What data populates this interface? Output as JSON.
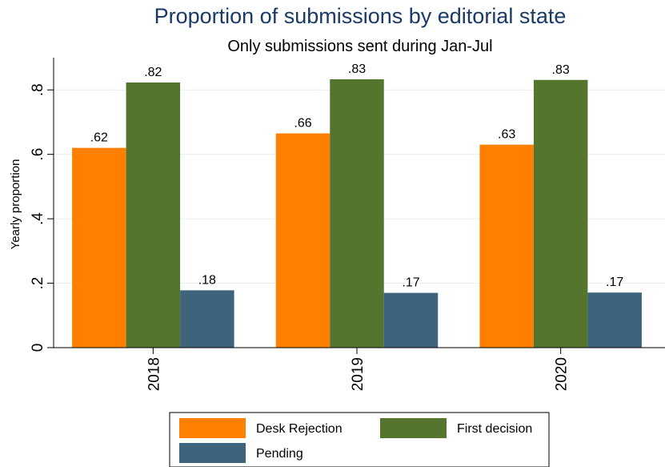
{
  "chart_data": {
    "type": "bar",
    "title": "Proportion of submissions by editorial state",
    "subtitle": "Only submissions sent during Jan-Jul",
    "ylabel": "Yearly proportion",
    "xlabel": "",
    "ylim": [
      0,
      0.9
    ],
    "yticks": [
      0,
      0.2,
      0.4,
      0.6,
      0.8
    ],
    "ytick_labels": [
      "0",
      ".2",
      ".4",
      ".6",
      ".8"
    ],
    "categories": [
      "2018",
      "2019",
      "2020"
    ],
    "series": [
      {
        "name": "Desk Rejection",
        "color": "#ff7f00",
        "values": [
          0.62,
          0.665,
          0.63
        ],
        "labels": [
          ".62",
          ".66",
          ".63"
        ]
      },
      {
        "name": "First decision",
        "color": "#55752f",
        "values": [
          0.823,
          0.833,
          0.831
        ],
        "labels": [
          ".82",
          ".83",
          ".83"
        ]
      },
      {
        "name": "Pending",
        "color": "#3e647d",
        "values": [
          0.178,
          0.17,
          0.171
        ],
        "labels": [
          ".18",
          ".17",
          ".17"
        ]
      }
    ],
    "grid": true,
    "legend_position": "bottom"
  }
}
